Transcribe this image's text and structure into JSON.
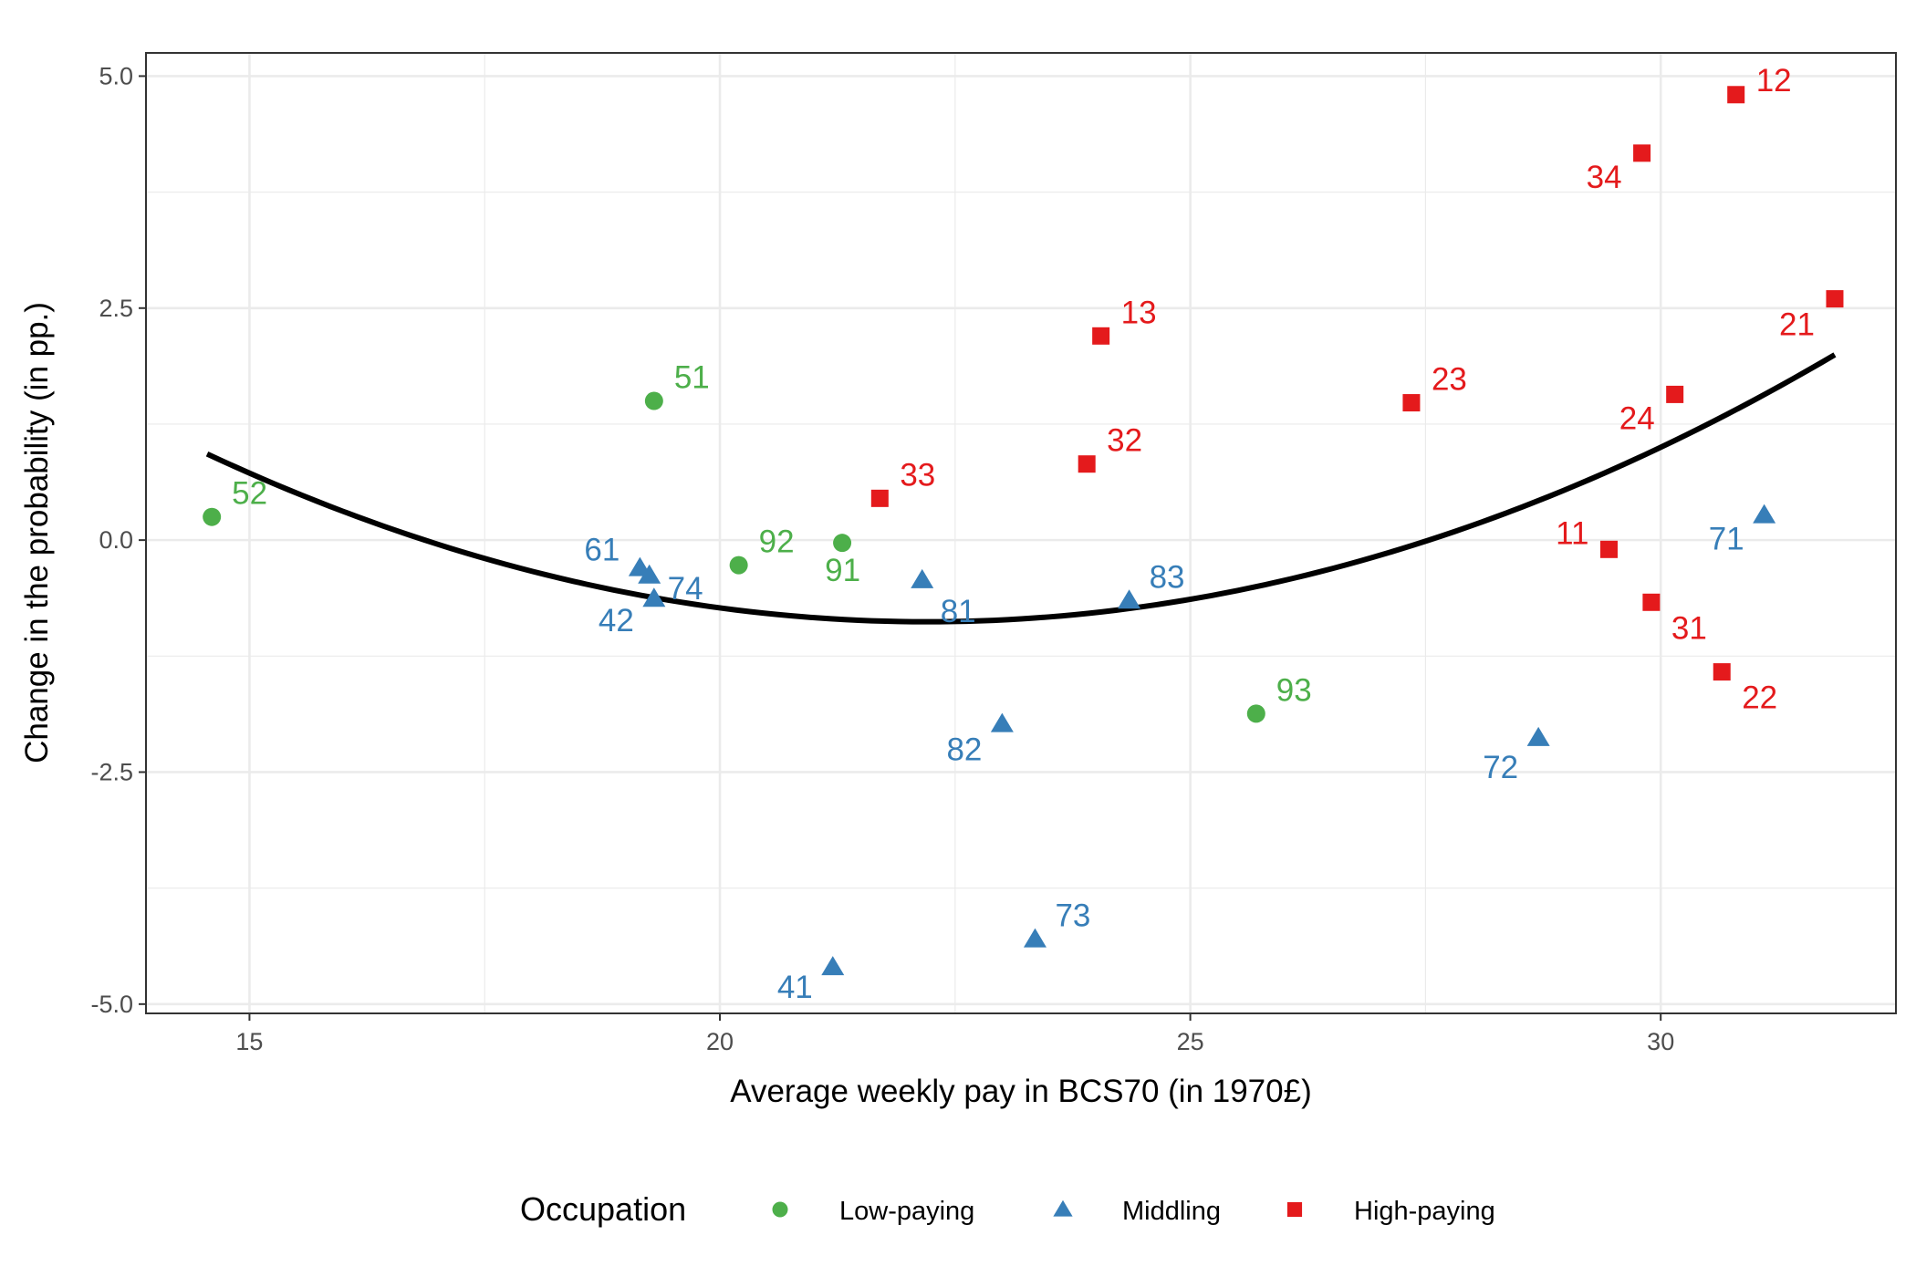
{
  "chart_data": {
    "type": "scatter",
    "xlabel": "Average weekly pay in BCS70 (in 1970£)",
    "ylabel": "Change in the probability (in pp.)",
    "xlim": [
      13.9,
      32.5
    ],
    "ylim": [
      -5.1,
      5.25
    ],
    "x_ticks": [
      15,
      20,
      25,
      30
    ],
    "x_tick_labels": [
      "15",
      "20",
      "25",
      "30"
    ],
    "x_minor_ticks": [
      17.5,
      22.5,
      27.5,
      32.5
    ],
    "y_ticks": [
      -5,
      -2.5,
      0,
      2.5,
      5
    ],
    "y_tick_labels": [
      "-5.0",
      "-2.5",
      "0.0",
      "2.5",
      "5.0"
    ],
    "y_minor_ticks": [
      -3.75,
      -1.25,
      1.25,
      3.75
    ],
    "grid": true,
    "legend": {
      "title": "Occupation",
      "placement": "bottom",
      "entries": [
        "Low-paying",
        "Middling",
        "High-paying"
      ]
    },
    "series": [
      {
        "name": "Low-paying",
        "marker": "circle",
        "color": "#4daf4a",
        "points": [
          {
            "label": "51",
            "x": 19.3,
            "y": 1.5
          },
          {
            "label": "52",
            "x": 14.6,
            "y": 0.25
          },
          {
            "label": "92",
            "x": 20.2,
            "y": -0.27
          },
          {
            "label": "91",
            "x": 21.3,
            "y": -0.03
          },
          {
            "label": "93",
            "x": 25.7,
            "y": -1.87
          }
        ]
      },
      {
        "name": "Middling",
        "marker": "triangle",
        "color": "#377eb8",
        "points": [
          {
            "label": "61",
            "x": 19.15,
            "y": -0.3
          },
          {
            "label": "74",
            "x": 19.25,
            "y": -0.38
          },
          {
            "label": "42",
            "x": 19.3,
            "y": -0.63
          },
          {
            "label": "81",
            "x": 22.15,
            "y": -0.43
          },
          {
            "label": "83",
            "x": 24.35,
            "y": -0.65
          },
          {
            "label": "82",
            "x": 23.0,
            "y": -1.98
          },
          {
            "label": "73",
            "x": 23.35,
            "y": -4.3
          },
          {
            "label": "41",
            "x": 21.2,
            "y": -4.6
          },
          {
            "label": "72",
            "x": 28.7,
            "y": -2.13
          },
          {
            "label": "71",
            "x": 31.1,
            "y": 0.27
          }
        ]
      },
      {
        "name": "High-paying",
        "marker": "square",
        "color": "#e41a1c",
        "points": [
          {
            "label": "12",
            "x": 30.8,
            "y": 4.8
          },
          {
            "label": "34",
            "x": 29.8,
            "y": 4.17
          },
          {
            "label": "21",
            "x": 31.85,
            "y": 2.6
          },
          {
            "label": "13",
            "x": 24.05,
            "y": 2.2
          },
          {
            "label": "23",
            "x": 27.35,
            "y": 1.48
          },
          {
            "label": "24",
            "x": 30.15,
            "y": 1.57
          },
          {
            "label": "32",
            "x": 23.9,
            "y": 0.82
          },
          {
            "label": "33",
            "x": 21.7,
            "y": 0.45
          },
          {
            "label": "11",
            "x": 29.45,
            "y": -0.1
          },
          {
            "label": "31",
            "x": 29.9,
            "y": -0.67
          },
          {
            "label": "22",
            "x": 30.65,
            "y": -1.42
          }
        ]
      }
    ],
    "fit_line": {
      "type": "quadratic",
      "color": "#000000",
      "x_range": [
        14.55,
        31.85
      ],
      "coefficients": {
        "vertex_x": 22.2,
        "vertex_y": -0.88,
        "a": 0.0309
      }
    }
  }
}
